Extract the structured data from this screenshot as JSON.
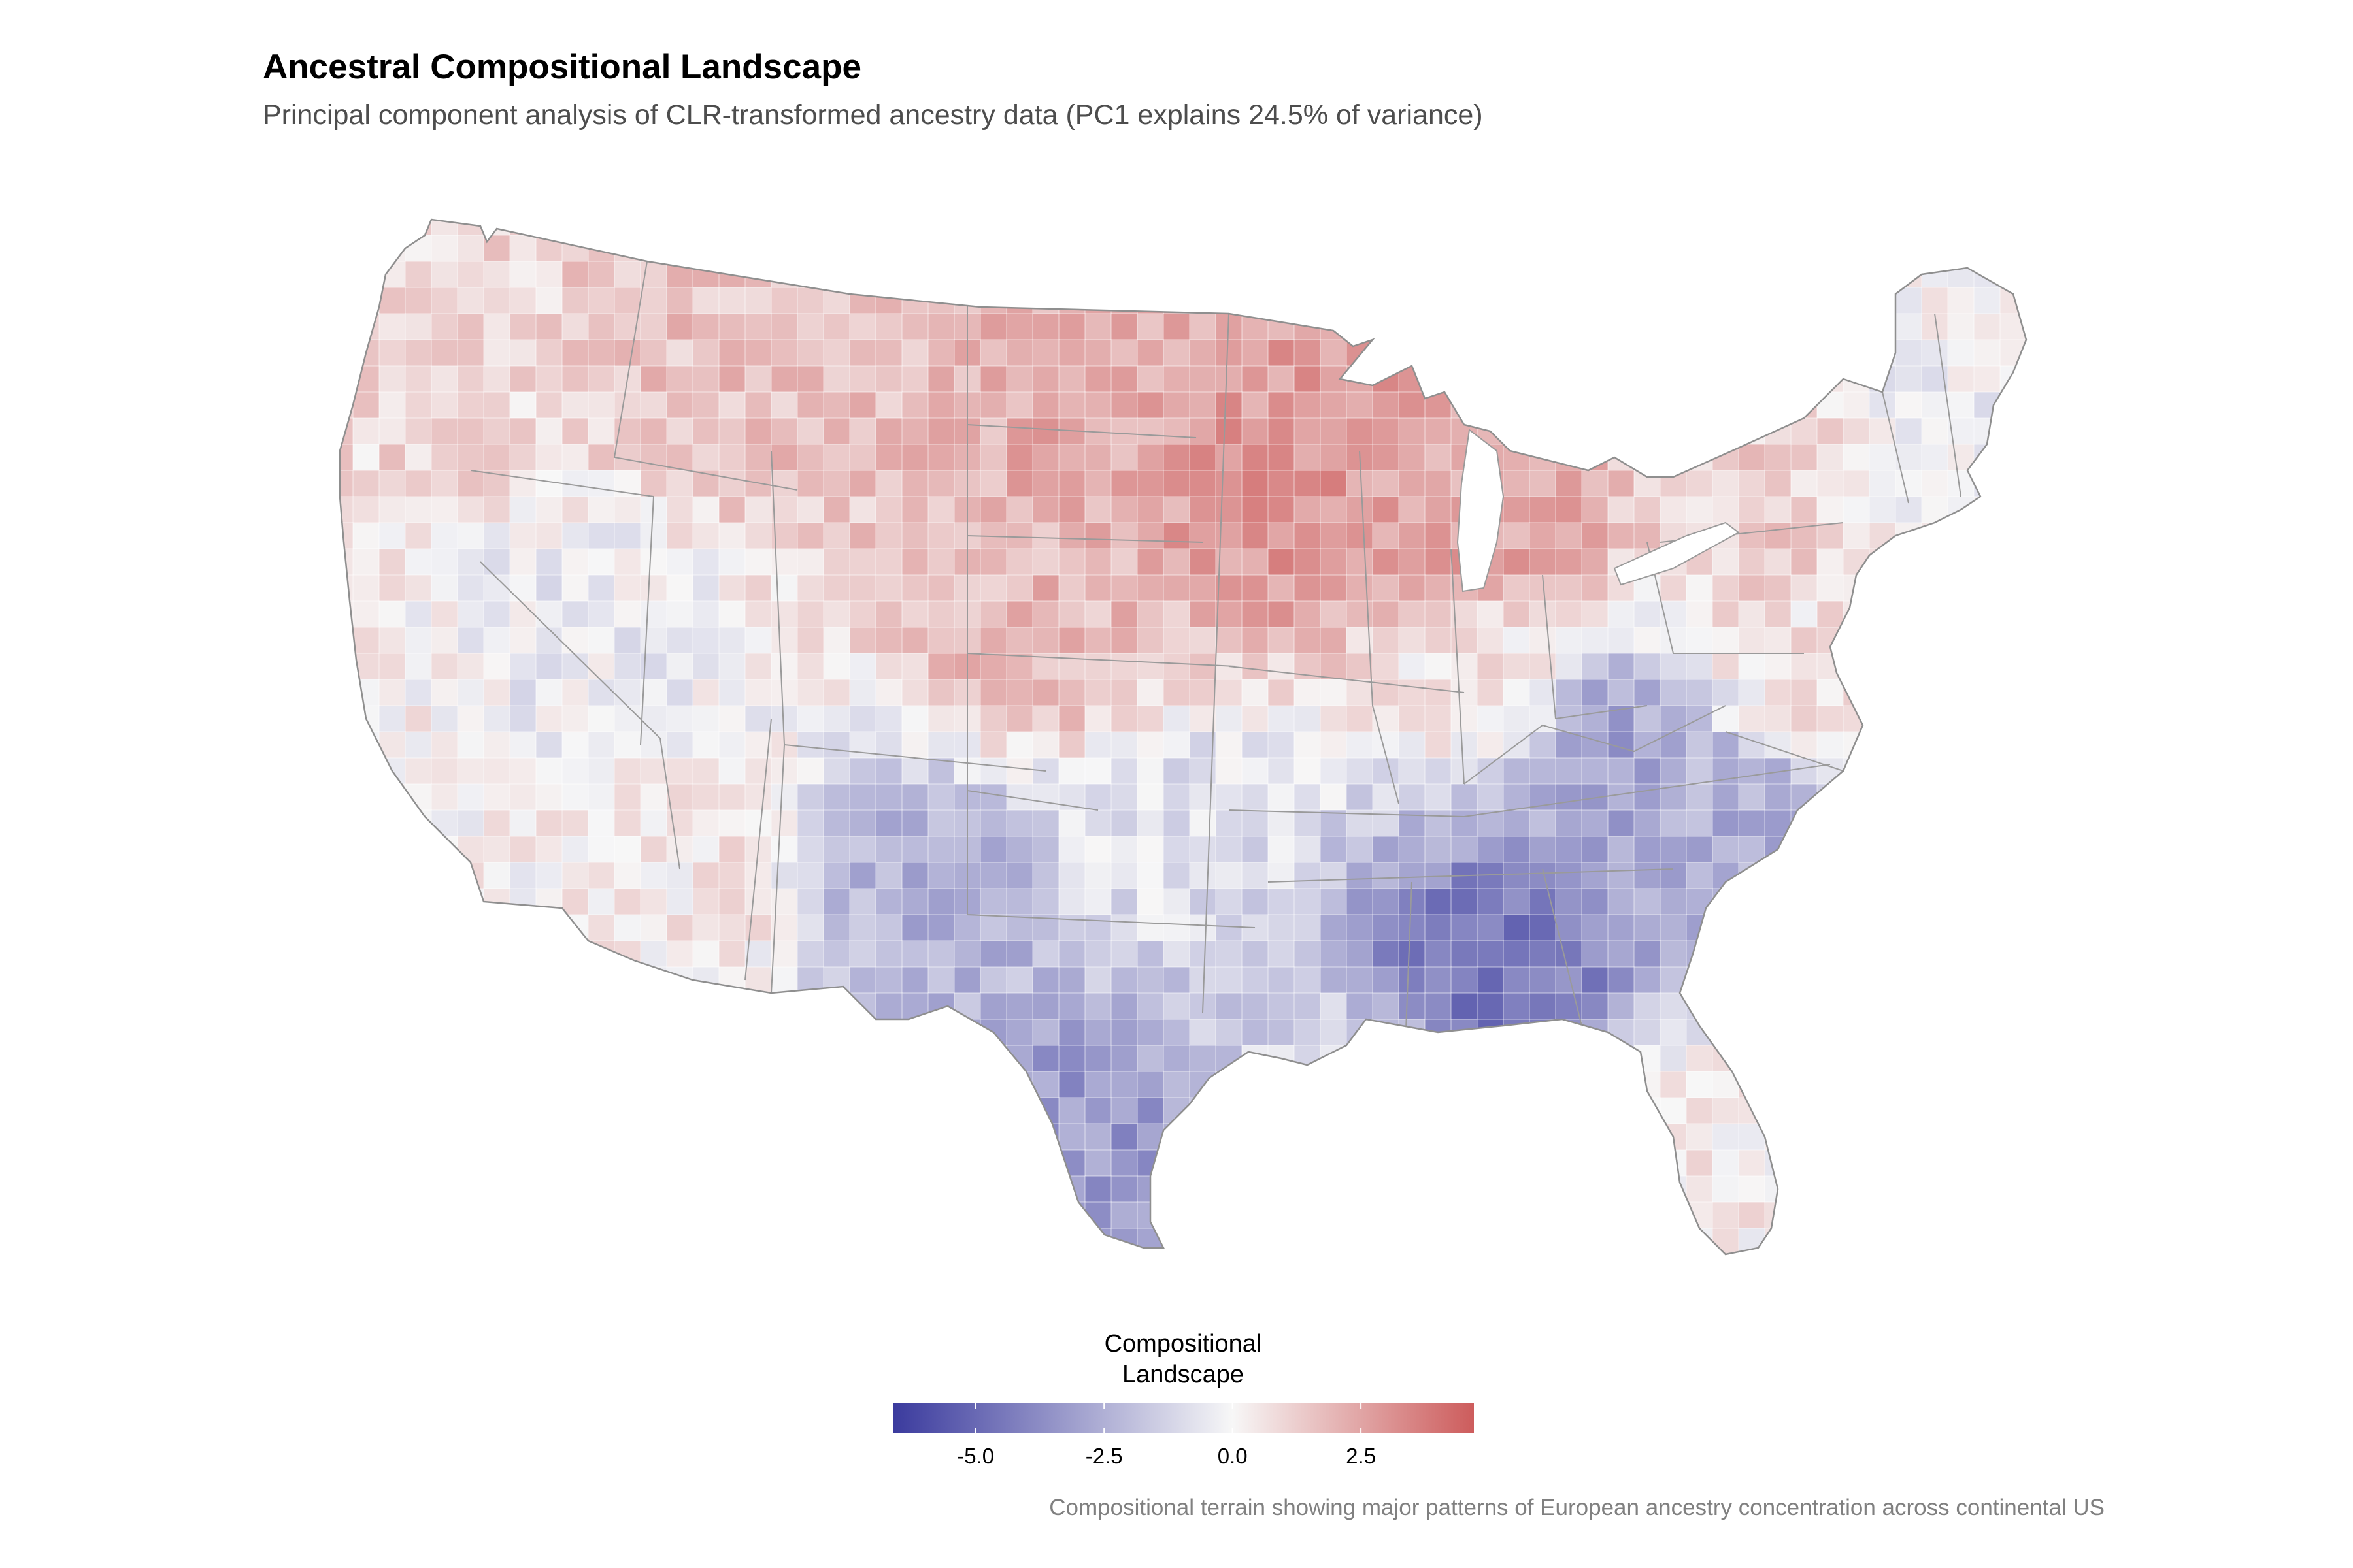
{
  "title": "Ancestral Compositional Landscape",
  "subtitle": "Principal component analysis of CLR-transformed ancestry data (PC1 explains 24.5% of variance)",
  "caption": "Compositional terrain showing major patterns of European ancestry concentration across continental US",
  "legend": {
    "title_line1": "Compositional",
    "title_line2": "Landscape",
    "ticks": [
      "-5.0",
      "-2.5",
      "0.0",
      "2.5"
    ],
    "tick_values": [
      -5.0,
      -2.5,
      0.0,
      2.5
    ],
    "range": [
      -6.6,
      4.7
    ],
    "colors": {
      "low": "#3b3b9e",
      "mid": "#f7f7f7",
      "high": "#cd5c5c"
    }
  },
  "map": {
    "projection": "continental US counties, choropleth of PC1 score",
    "border_color": "#9a9a9a",
    "regions": [
      {
        "name": "pacific-northwest",
        "value": 1.0
      },
      {
        "name": "northern-rockies",
        "value": 1.6
      },
      {
        "name": "great-basin",
        "value": -0.4
      },
      {
        "name": "california",
        "value": 0.2
      },
      {
        "name": "southwest",
        "value": 0.4
      },
      {
        "name": "northern-plains",
        "value": 2.2
      },
      {
        "name": "central-plains",
        "value": 1.9
      },
      {
        "name": "upper-midwest",
        "value": 3.0
      },
      {
        "name": "great-lakes",
        "value": 2.5
      },
      {
        "name": "ohio-valley",
        "value": 0.5
      },
      {
        "name": "northeast",
        "value": 1.2
      },
      {
        "name": "new-england",
        "value": -0.2
      },
      {
        "name": "mid-atlantic",
        "value": 0.6
      },
      {
        "name": "texas-west",
        "value": -2.4
      },
      {
        "name": "texas-south",
        "value": -3.3
      },
      {
        "name": "oklahoma",
        "value": -0.8
      },
      {
        "name": "appalachia",
        "value": -2.9
      },
      {
        "name": "deep-south",
        "value": -4.4
      },
      {
        "name": "carolinas",
        "value": -2.6
      },
      {
        "name": "gulf-coast",
        "value": -1.0
      },
      {
        "name": "florida",
        "value": 0.3
      }
    ]
  }
}
